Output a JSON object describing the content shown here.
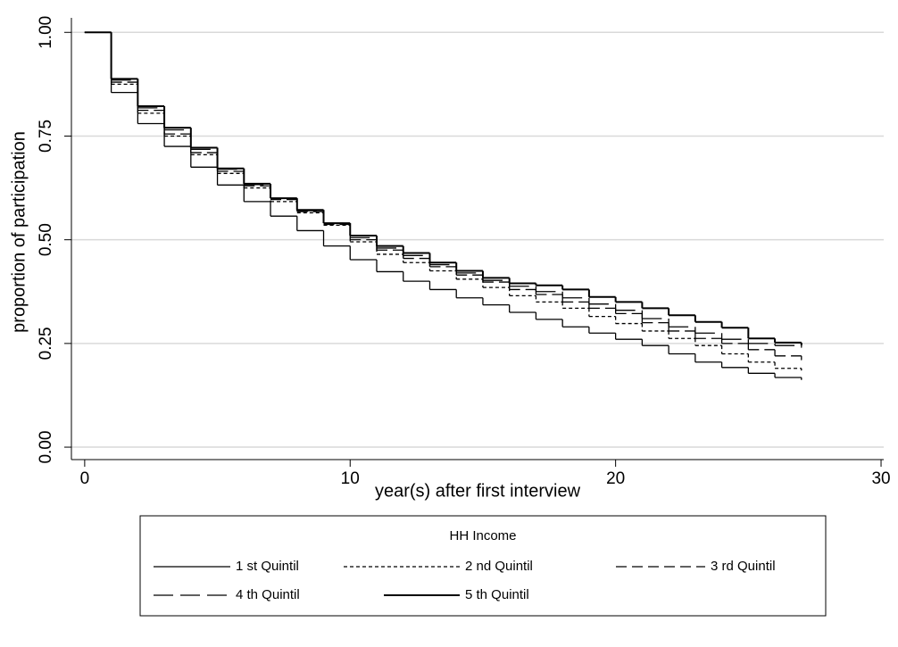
{
  "chart_data": {
    "type": "step",
    "x_label": "year(s) after first interview",
    "y_label": "proportion of participation",
    "legend_title": "HH Income",
    "x": [
      0,
      1,
      2,
      3,
      4,
      5,
      6,
      7,
      8,
      9,
      10,
      11,
      12,
      13,
      14,
      15,
      16,
      17,
      18,
      19,
      20,
      21,
      22,
      23,
      24,
      25,
      26,
      27
    ],
    "xlim": [
      -0.5,
      30.1
    ],
    "ylim": [
      -0.03,
      1.035
    ],
    "xticks": [
      0,
      10,
      20,
      30
    ],
    "yticks": [
      {
        "value": 0,
        "label": "0.00"
      },
      {
        "value": 0.25,
        "label": "0.25"
      },
      {
        "value": 0.5,
        "label": "0.50"
      },
      {
        "value": 0.75,
        "label": "0.75"
      },
      {
        "value": 1,
        "label": "1.00"
      }
    ],
    "grid": true,
    "series": [
      {
        "name": "1 st Quintil",
        "color": "#000000",
        "dash": "none",
        "values": [
          1.0,
          0.855,
          0.78,
          0.725,
          0.675,
          0.632,
          0.592,
          0.557,
          0.522,
          0.485,
          0.452,
          0.423,
          0.4,
          0.38,
          0.36,
          0.343,
          0.325,
          0.308,
          0.29,
          0.275,
          0.26,
          0.245,
          0.225,
          0.205,
          0.192,
          0.178,
          0.168,
          0.162
        ]
      },
      {
        "name": "2 nd Quintil",
        "color": "#000000",
        "dash": "4,3",
        "values": [
          1.0,
          0.875,
          0.805,
          0.75,
          0.705,
          0.66,
          0.625,
          0.592,
          0.565,
          0.535,
          0.495,
          0.465,
          0.445,
          0.425,
          0.405,
          0.385,
          0.365,
          0.35,
          0.335,
          0.315,
          0.298,
          0.28,
          0.262,
          0.245,
          0.225,
          0.205,
          0.19,
          0.185
        ]
      },
      {
        "name": "3 rd Quintil",
        "color": "#000000",
        "dash": "12,6",
        "values": [
          1.0,
          0.88,
          0.812,
          0.755,
          0.71,
          0.665,
          0.63,
          0.597,
          0.568,
          0.537,
          0.5,
          0.475,
          0.455,
          0.435,
          0.415,
          0.398,
          0.38,
          0.368,
          0.35,
          0.335,
          0.322,
          0.3,
          0.28,
          0.262,
          0.25,
          0.235,
          0.22,
          0.21
        ]
      },
      {
        "name": "4 th Quintil",
        "color": "#000000",
        "dash": "22,8",
        "values": [
          1.0,
          0.885,
          0.818,
          0.765,
          0.718,
          0.67,
          0.633,
          0.6,
          0.57,
          0.54,
          0.505,
          0.48,
          0.462,
          0.44,
          0.42,
          0.402,
          0.388,
          0.375,
          0.36,
          0.345,
          0.33,
          0.31,
          0.29,
          0.275,
          0.26,
          0.25,
          0.245,
          0.24
        ]
      },
      {
        "name": "5 th Quintil",
        "color": "#000000",
        "dash": "none",
        "width": 2,
        "values": [
          1.0,
          0.888,
          0.822,
          0.77,
          0.722,
          0.672,
          0.635,
          0.6,
          0.572,
          0.54,
          0.51,
          0.485,
          0.468,
          0.445,
          0.425,
          0.408,
          0.395,
          0.39,
          0.38,
          0.362,
          0.35,
          0.335,
          0.318,
          0.302,
          0.288,
          0.262,
          0.252,
          0.245
        ]
      }
    ]
  }
}
